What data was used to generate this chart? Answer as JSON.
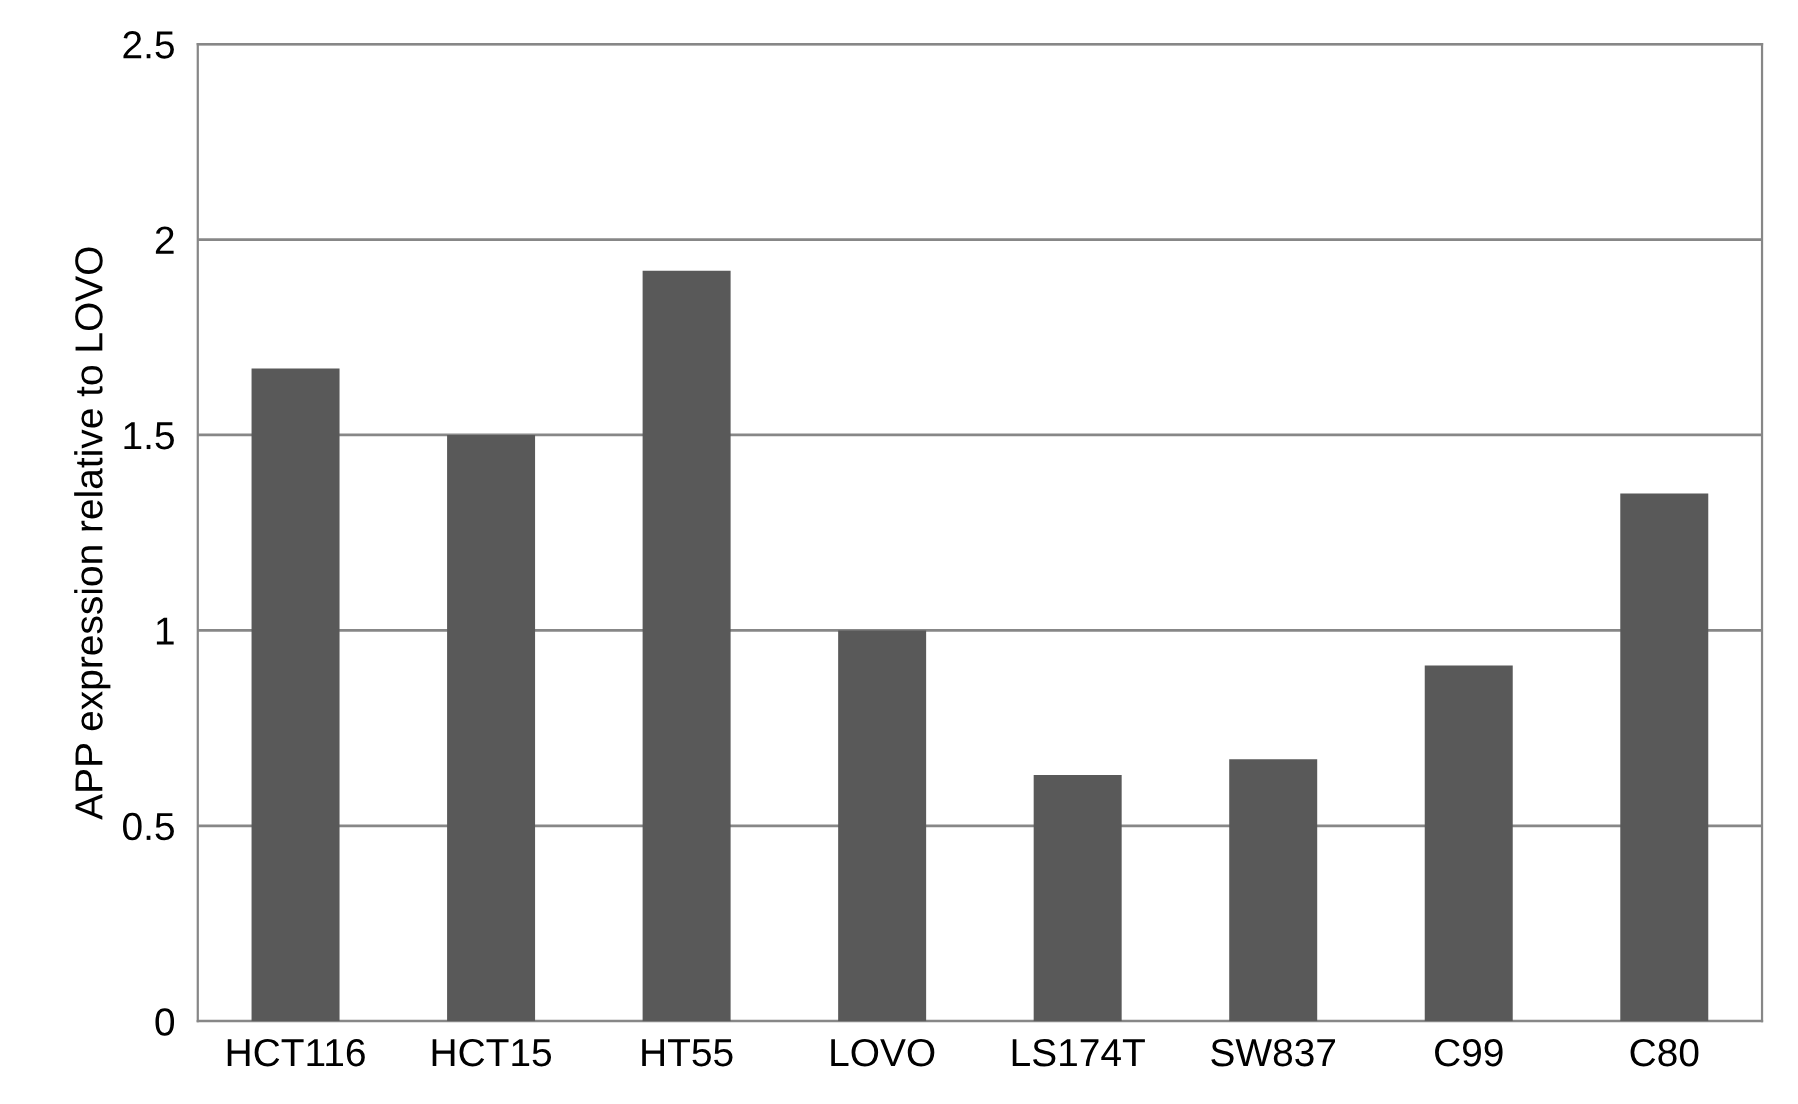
{
  "chart_data": {
    "type": "bar",
    "ylabel": "APP expression relative to LOVO",
    "categories": [
      "HCT116",
      "HCT15",
      "HT55",
      "LOVO",
      "LS174T",
      "SW837",
      "C99",
      "C80"
    ],
    "values": [
      1.67,
      1.5,
      1.92,
      1.0,
      0.63,
      0.67,
      0.91,
      1.35
    ],
    "color": "#595959",
    "ylim": [
      0,
      2.5
    ],
    "yticks": [
      0,
      0.5,
      1,
      1.5,
      2,
      2.5
    ],
    "grid": "y",
    "legend": false
  }
}
